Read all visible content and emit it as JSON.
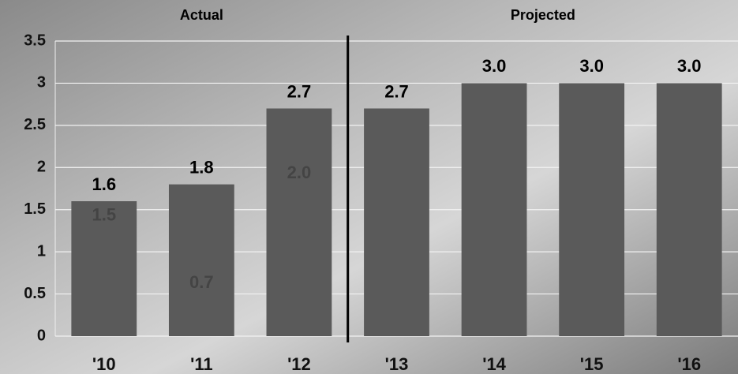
{
  "chart_data": {
    "type": "bar",
    "categories": [
      "'10",
      "'11",
      "'12",
      "'13",
      "'14",
      "'15",
      "'16"
    ],
    "values": [
      1.6,
      1.8,
      2.7,
      2.7,
      3.0,
      3.0,
      3.0
    ],
    "value_labels": [
      "1.6",
      "1.8",
      "2.7",
      "2.7",
      "3.0",
      "3.0",
      "3.0"
    ],
    "ghost_values": [
      1.5,
      0.7,
      2.0,
      null,
      null,
      null,
      null
    ],
    "ghost_labels": [
      "1.5",
      "0.7",
      "2.0",
      null,
      null,
      null,
      null
    ],
    "sections": [
      {
        "label": "Actual",
        "count": 3
      },
      {
        "label": "Projected",
        "count": 4
      }
    ],
    "color": "#5a5a5a",
    "ylim": [
      0,
      3.5
    ],
    "yticks": [
      0,
      0.5,
      1,
      1.5,
      2,
      2.5,
      3,
      3.5
    ],
    "grid": true
  }
}
